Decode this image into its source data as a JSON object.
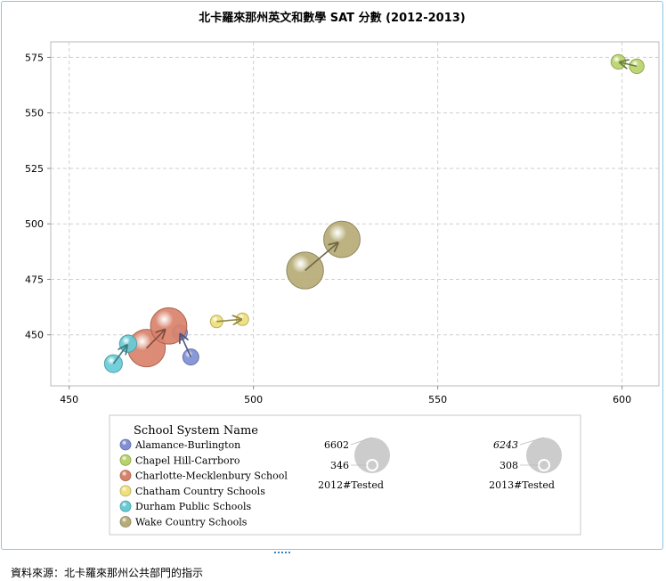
{
  "chart_data": {
    "type": "scatter",
    "subtype": "bubble-with-arrows",
    "title": "北卡羅來那州英文和數學 SAT 分數 (2012-2013)",
    "xlabel": "",
    "ylabel": "",
    "xlim": [
      445,
      610
    ],
    "ylim": [
      427,
      582
    ],
    "xticks": [
      450,
      500,
      550,
      600
    ],
    "yticks": [
      450,
      475,
      500,
      525,
      550,
      575
    ],
    "grid": true,
    "legend_title": "School System Name",
    "series": [
      {
        "name": "Alamance-Burlington",
        "color": "#7f8fd4",
        "from": {
          "x": 483,
          "y": 440,
          "tested": 1200
        },
        "to": {
          "x": 480,
          "y": 451,
          "tested": 1100
        }
      },
      {
        "name": "Chapel Hill-Carrboro",
        "color": "#b9d36a",
        "from": {
          "x": 604,
          "y": 571,
          "tested": 1000
        },
        "to": {
          "x": 599,
          "y": 573,
          "tested": 1000
        }
      },
      {
        "name": "Charlotte-Mecklenbury School",
        "color": "#d9826b",
        "from": {
          "x": 471,
          "y": 444,
          "tested": 6602
        },
        "to": {
          "x": 477,
          "y": 454,
          "tested": 6243
        }
      },
      {
        "name": "Chatham Country Schools",
        "color": "#efe07a",
        "from": {
          "x": 490,
          "y": 456,
          "tested": 500
        },
        "to": {
          "x": 497,
          "y": 457,
          "tested": 450
        }
      },
      {
        "name": "Durham Public Schools",
        "color": "#67cbd6",
        "from": {
          "x": 462,
          "y": 437,
          "tested": 1500
        },
        "to": {
          "x": 466,
          "y": 446,
          "tested": 1400
        }
      },
      {
        "name": "Wake Country Schools",
        "color": "#b7ac76",
        "from": {
          "x": 514,
          "y": 479,
          "tested": 6400
        },
        "to": {
          "x": 524,
          "y": 493,
          "tested": 6243
        }
      }
    ],
    "size_legends": [
      {
        "label": "2012#Tested",
        "max": 6602,
        "min": 346,
        "max_label": "6602",
        "min_label": "346",
        "italic": false
      },
      {
        "label": "2013#Tested",
        "max": 6243,
        "min": 308,
        "max_label": "6243",
        "min_label": "308",
        "italic": true
      }
    ]
  },
  "source_note": "資料來源：北卡羅來那州公共部門的指示",
  "colors": {
    "frame": "#8fc3e6",
    "grid": "#cfcfcf",
    "size_bubble": "#cccccc",
    "handle": "#3a7fc2"
  }
}
